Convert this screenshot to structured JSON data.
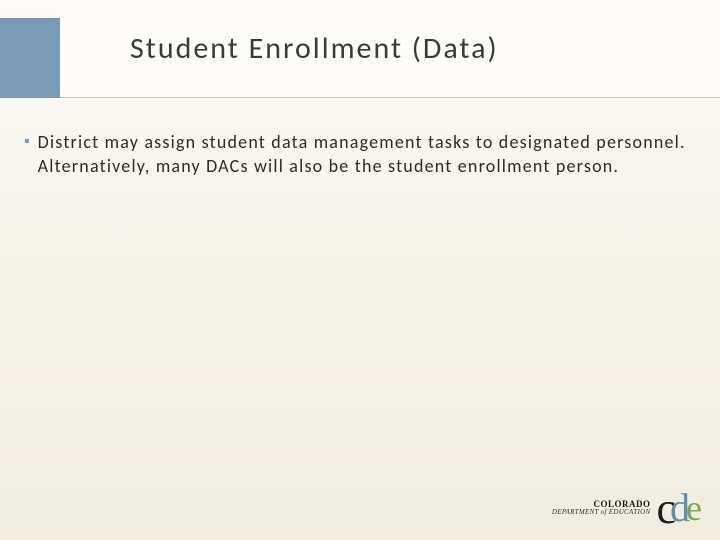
{
  "slide": {
    "title": "Student Enrollment (Data)",
    "bullets": [
      {
        "text": "District may assign student data management tasks to designated personnel. Alternatively, many DACs will also be the student enrollment person."
      }
    ]
  },
  "footer": {
    "line1": "COLORADO",
    "line2": "DEPARTMENT of EDUCATION",
    "logo_c": "c",
    "logo_d": "d",
    "logo_e": "e"
  },
  "styling": {
    "header_band_color": "#7a9ab5",
    "background_gradient_top": "#fcfbf7",
    "background_gradient_bottom": "#f0ece0",
    "title_color": "#3a3a3a",
    "title_fontsize": 30,
    "body_fontsize": 18,
    "body_color": "#2b2b2b",
    "bullet_marker_color": "#7a9ab5",
    "logo_c_color": "#1a1a1a",
    "logo_d_color": "#5b8fb0",
    "logo_e_color": "#7aa84a"
  }
}
